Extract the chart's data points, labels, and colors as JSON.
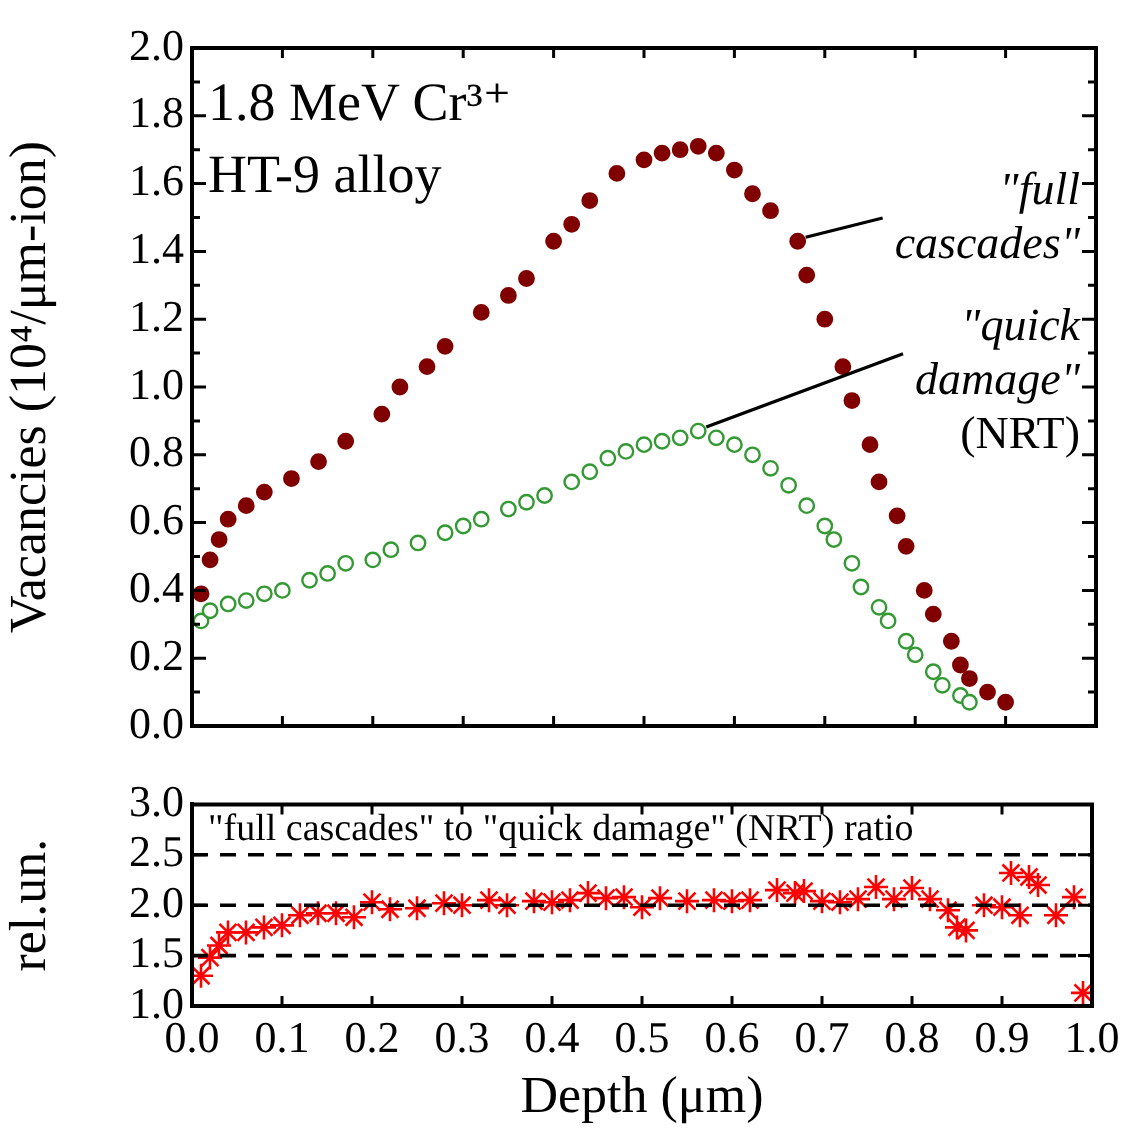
{
  "chart_data": [
    {
      "type": "scatter",
      "ylabel": "Vacancies (10⁴/μm-ion)",
      "xlim": [
        0,
        1
      ],
      "ylim": [
        0,
        2
      ],
      "xticks": [
        0,
        0.1,
        0.2,
        0.3,
        0.4,
        0.5,
        0.6,
        0.7,
        0.8,
        0.9,
        1
      ],
      "yticks": [
        {
          "value": 0,
          "label": "0.0"
        },
        {
          "value": 0.1,
          "label": null
        },
        0.2,
        {
          "value": 0.3,
          "label": null
        },
        0.4,
        {
          "value": 0.5,
          "label": null
        },
        0.6,
        {
          "value": 0.7,
          "label": null
        },
        0.8,
        {
          "value": 0.9,
          "label": null
        },
        {
          "value": 1,
          "label": "1.0"
        },
        {
          "value": 1.1,
          "label": null
        },
        1.2,
        {
          "value": 1.3,
          "label": null
        },
        1.4,
        {
          "value": 1.5,
          "label": null
        },
        1.6,
        {
          "value": 1.7,
          "label": null
        },
        1.8,
        {
          "value": 1.9,
          "label": null
        },
        {
          "value": 2,
          "label": "2.0"
        }
      ],
      "tick_labels": "y",
      "grid": false,
      "legend": false,
      "marker": "circle",
      "annotations": [
        "1.8 MeV Cr³⁺",
        "HT-9 alloy",
        {
          "text": "\"full cascades\"",
          "x": 0.67,
          "y": 1.43
        },
        {
          "text": "\"quick damage\" (NRT)",
          "x": 0.56,
          "y": 0.87
        }
      ],
      "series": [
        {
          "color": "#800000",
          "x": [
            0.01,
            0.02,
            0.03,
            0.04,
            0.06,
            0.08,
            0.11,
            0.14,
            0.17,
            0.21,
            0.23,
            0.26,
            0.28,
            0.32,
            0.35,
            0.37,
            0.4,
            0.42,
            0.44,
            0.47,
            0.5,
            0.52,
            0.54,
            0.56,
            0.58,
            0.6,
            0.62,
            0.64,
            0.67,
            0.68,
            0.7,
            0.72,
            0.73,
            0.75,
            0.76,
            0.78,
            0.79,
            0.81,
            0.82,
            0.84,
            0.85,
            0.86,
            0.88,
            0.9
          ],
          "values": [
            0.39,
            0.49,
            0.55,
            0.61,
            0.65,
            0.69,
            0.73,
            0.78,
            0.84,
            0.92,
            1.0,
            1.06,
            1.12,
            1.22,
            1.27,
            1.32,
            1.43,
            1.48,
            1.55,
            1.63,
            1.67,
            1.69,
            1.7,
            1.71,
            1.69,
            1.64,
            1.57,
            1.52,
            1.43,
            1.33,
            1.2,
            1.06,
            0.96,
            0.83,
            0.72,
            0.62,
            0.53,
            0.4,
            0.33,
            0.25,
            0.18,
            0.14,
            0.1,
            0.07
          ]
        },
        {
          "color": "#339933",
          "x": [
            0.01,
            0.02,
            0.04,
            0.06,
            0.08,
            0.1,
            0.13,
            0.15,
            0.17,
            0.2,
            0.22,
            0.25,
            0.28,
            0.3,
            0.32,
            0.35,
            0.37,
            0.39,
            0.42,
            0.44,
            0.46,
            0.48,
            0.5,
            0.52,
            0.54,
            0.56,
            0.58,
            0.6,
            0.62,
            0.64,
            0.66,
            0.68,
            0.7,
            0.71,
            0.73,
            0.74,
            0.76,
            0.77,
            0.79,
            0.8,
            0.82,
            0.83,
            0.85,
            0.86
          ],
          "values": [
            0.31,
            0.34,
            0.36,
            0.37,
            0.39,
            0.4,
            0.43,
            0.45,
            0.48,
            0.49,
            0.52,
            0.54,
            0.57,
            0.59,
            0.61,
            0.64,
            0.66,
            0.68,
            0.72,
            0.75,
            0.79,
            0.81,
            0.83,
            0.84,
            0.85,
            0.87,
            0.85,
            0.83,
            0.8,
            0.76,
            0.71,
            0.65,
            0.59,
            0.55,
            0.48,
            0.41,
            0.35,
            0.31,
            0.25,
            0.21,
            0.16,
            0.12,
            0.09,
            0.07
          ]
        }
      ]
    },
    {
      "type": "scatter",
      "xlabel": "Depth (μm)",
      "ylabel": "rel.un.",
      "xlim": [
        0,
        1
      ],
      "ylim": [
        1,
        3
      ],
      "xticks": [
        {
          "value": 0,
          "label": "0.0"
        },
        0.1,
        0.2,
        0.3,
        0.4,
        0.5,
        0.6,
        0.7,
        0.8,
        0.9,
        {
          "value": 1,
          "label": "1.0"
        }
      ],
      "yticks": [
        {
          "value": 1,
          "label": "1.0"
        },
        1.5,
        {
          "value": 2,
          "label": "2.0"
        },
        2.5,
        {
          "value": 3,
          "label": "3.0"
        }
      ],
      "grid": false,
      "legend": false,
      "marker": "cross",
      "annotations": [
        "\"full cascades\" to \"quick damage\" (NRT) ratio"
      ],
      "ref_lines": [
        {
          "axis": "y",
          "value": 1.5,
          "line_style": "dashed"
        },
        {
          "axis": "y",
          "value": 2,
          "line_style": "dashed"
        },
        {
          "axis": "y",
          "value": 2.5,
          "line_style": "dashed"
        }
      ],
      "series": [
        {
          "color": "#ff0000",
          "x": [
            0.01,
            0.02,
            0.03,
            0.04,
            0.06,
            0.08,
            0.1,
            0.12,
            0.14,
            0.16,
            0.18,
            0.2,
            0.22,
            0.25,
            0.28,
            0.3,
            0.33,
            0.35,
            0.38,
            0.4,
            0.42,
            0.44,
            0.46,
            0.48,
            0.5,
            0.52,
            0.55,
            0.58,
            0.6,
            0.62,
            0.65,
            0.67,
            0.68,
            0.7,
            0.72,
            0.74,
            0.76,
            0.78,
            0.8,
            0.82,
            0.84,
            0.85,
            0.86,
            0.88,
            0.9,
            0.91,
            0.92,
            0.93,
            0.94,
            0.96,
            0.98,
            0.99
          ],
          "values": [
            1.3,
            1.48,
            1.6,
            1.73,
            1.73,
            1.78,
            1.8,
            1.9,
            1.92,
            1.92,
            1.88,
            2.03,
            1.96,
            1.97,
            2.02,
            2.0,
            2.05,
            2.0,
            2.04,
            2.03,
            2.05,
            2.12,
            2.07,
            2.08,
            1.98,
            2.07,
            2.04,
            2.05,
            2.04,
            2.05,
            2.15,
            2.12,
            2.14,
            2.04,
            2.03,
            2.06,
            2.18,
            2.06,
            2.17,
            2.06,
            1.95,
            1.78,
            1.75,
            2.0,
            1.98,
            2.32,
            1.9,
            2.28,
            2.2,
            1.9,
            2.08,
            1.13
          ]
        }
      ]
    }
  ]
}
